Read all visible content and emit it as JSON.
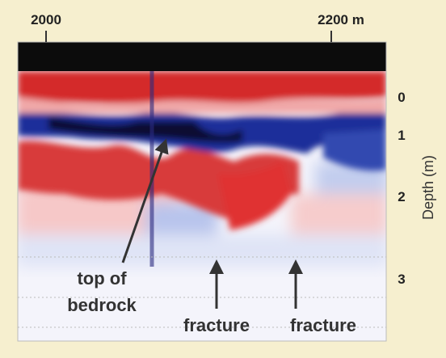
{
  "x_axis": {
    "labels": [
      "2000",
      "2200 m"
    ]
  },
  "y_axis": {
    "title": "Depth (m)",
    "labels": [
      "0",
      "1",
      "2",
      "3"
    ]
  },
  "annotations": [
    {
      "lines": [
        "top of",
        "bedrock"
      ]
    },
    {
      "lines": [
        "fracture"
      ]
    },
    {
      "lines": [
        "fracture"
      ]
    }
  ]
}
